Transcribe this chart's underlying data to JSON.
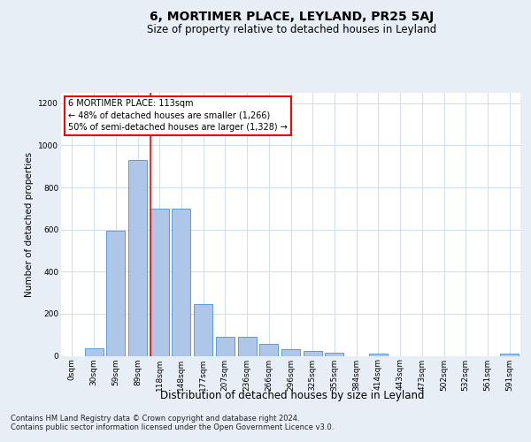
{
  "title": "6, MORTIMER PLACE, LEYLAND, PR25 5AJ",
  "subtitle": "Size of property relative to detached houses in Leyland",
  "xlabel": "Distribution of detached houses by size in Leyland",
  "ylabel": "Number of detached properties",
  "bar_categories": [
    "0sqm",
    "30sqm",
    "59sqm",
    "89sqm",
    "118sqm",
    "148sqm",
    "177sqm",
    "207sqm",
    "236sqm",
    "266sqm",
    "296sqm",
    "325sqm",
    "355sqm",
    "384sqm",
    "414sqm",
    "443sqm",
    "473sqm",
    "502sqm",
    "532sqm",
    "561sqm",
    "591sqm"
  ],
  "bar_values": [
    0,
    35,
    595,
    930,
    700,
    700,
    245,
    90,
    90,
    55,
    30,
    25,
    15,
    0,
    10,
    0,
    0,
    0,
    0,
    0,
    10
  ],
  "bar_color": "#aec6e8",
  "bar_edge_color": "#5b9bd5",
  "vline_x": 3.575,
  "vline_color": "red",
  "annotation_text": "6 MORTIMER PLACE: 113sqm\n← 48% of detached houses are smaller (1,266)\n50% of semi-detached houses are larger (1,328) →",
  "ylim": [
    0,
    1250
  ],
  "yticks": [
    0,
    200,
    400,
    600,
    800,
    1000,
    1200
  ],
  "footer_text": "Contains HM Land Registry data © Crown copyright and database right 2024.\nContains public sector information licensed under the Open Government Licence v3.0.",
  "bg_color": "#e8eef5",
  "plot_bg_color": "#ffffff",
  "grid_color": "#c8d8ea",
  "title_fontsize": 10,
  "subtitle_fontsize": 8.5,
  "ylabel_fontsize": 7.5,
  "xlabel_fontsize": 8.5,
  "tick_fontsize": 6.5,
  "annotation_fontsize": 7,
  "footer_fontsize": 6
}
